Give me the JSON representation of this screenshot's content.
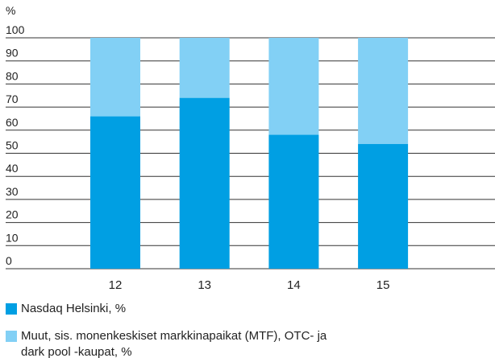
{
  "chart_data": {
    "type": "stacked_bar",
    "y_unit_label": "%",
    "categories": [
      "12",
      "13",
      "14",
      "15"
    ],
    "series": [
      {
        "name": "Nasdaq Helsinki, %",
        "color": "#009fe3",
        "values": [
          66,
          74,
          58,
          54
        ]
      },
      {
        "name": "Muut, sis. monenkeskiset markkinapaikat (MTF), OTC- ja dark pool -kaupat, %",
        "color": "#82d0f5",
        "values": [
          34,
          26,
          42,
          46
        ]
      }
    ],
    "ylim": [
      0,
      100
    ],
    "yticks": [
      0,
      10,
      20,
      30,
      40,
      50,
      60,
      70,
      80,
      90,
      100
    ],
    "grid": true
  }
}
